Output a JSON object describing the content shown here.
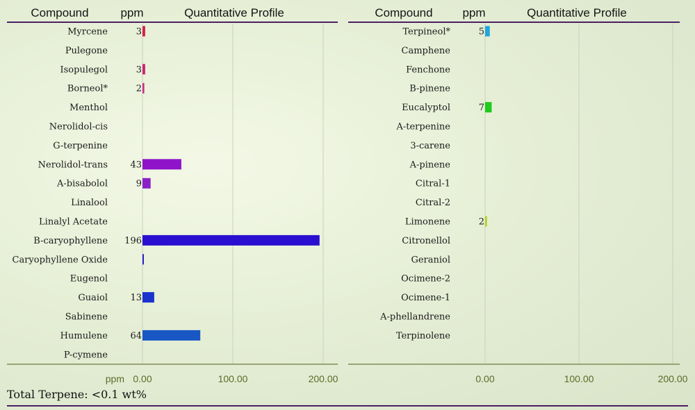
{
  "chart_data": [
    {
      "type": "bar",
      "orientation": "horizontal",
      "headers": {
        "compound": "Compound",
        "ppm": "ppm",
        "profile": "Quantitative Profile"
      },
      "axis_title": "ppm",
      "xlim": [
        0,
        200
      ],
      "ticks": [
        "0.00",
        "100.00",
        "200.00"
      ],
      "grid": true,
      "categories": [
        "Myrcene",
        "Pulegone",
        "Isopulegol",
        "Borneol*",
        "Menthol",
        "Nerolidol-cis",
        "G-terpenine",
        "Nerolidol-trans",
        "A-bisabolol",
        "Linalool",
        "Linalyl Acetate",
        "B-caryophyllene",
        "Caryophyllene Oxide",
        "Eugenol",
        "Guaiol",
        "Sabinene",
        "Humulene",
        "P-cymene"
      ],
      "values": [
        3,
        null,
        3,
        2,
        null,
        null,
        null,
        43,
        9,
        null,
        null,
        196,
        1,
        null,
        13,
        null,
        64,
        null
      ],
      "labels": [
        "3",
        "",
        "3",
        "2",
        "",
        "",
        "",
        "43",
        "9",
        "",
        "",
        "196",
        "",
        "",
        "13",
        "",
        "64",
        ""
      ],
      "colors": [
        "#d61f4e",
        "",
        "#cf2472",
        "#cc2c8a",
        "",
        "",
        "",
        "#8f14c9",
        "#8a1fc7",
        "",
        "",
        "#2a0fd0",
        "#2a22c4",
        "",
        "#1a33cc",
        "",
        "#1958c4",
        ""
      ]
    },
    {
      "type": "bar",
      "orientation": "horizontal",
      "headers": {
        "compound": "Compound",
        "ppm": "ppm",
        "profile": "Quantitative Profile"
      },
      "axis_title": "",
      "xlim": [
        0,
        200
      ],
      "ticks": [
        "0.00",
        "100.00",
        "200.00"
      ],
      "grid": true,
      "categories": [
        "Terpineol*",
        "Camphene",
        "Fenchone",
        "B-pinene",
        "Eucalyptol",
        "A-terpenine",
        "3-carene",
        "A-pinene",
        "Citral-1",
        "Citral-2",
        "Limonene",
        "Citronellol",
        "Geraniol",
        "Ocimene-2",
        "Ocimene-1",
        "A-phellandrene",
        "Terpinolene"
      ],
      "values": [
        5,
        null,
        null,
        null,
        7,
        null,
        null,
        null,
        null,
        null,
        2,
        null,
        null,
        null,
        null,
        null,
        null
      ],
      "labels": [
        "5",
        "",
        "",
        "",
        "7",
        "",
        "",
        "",
        "",
        "",
        "2",
        "",
        "",
        "",
        "",
        "",
        ""
      ],
      "colors": [
        "#1fa8d8",
        "",
        "",
        "",
        "#1ecb1e",
        "",
        "",
        "",
        "",
        "",
        "#b9cf1a",
        "",
        "",
        "",
        "",
        "",
        ""
      ]
    }
  ],
  "footer": {
    "total": "Total Terpene: <0.1 wt%"
  },
  "colors": {
    "header_line": "#4b1f63",
    "axis_line": "#6e7a3c",
    "tick_text": "#5b6b2a"
  }
}
